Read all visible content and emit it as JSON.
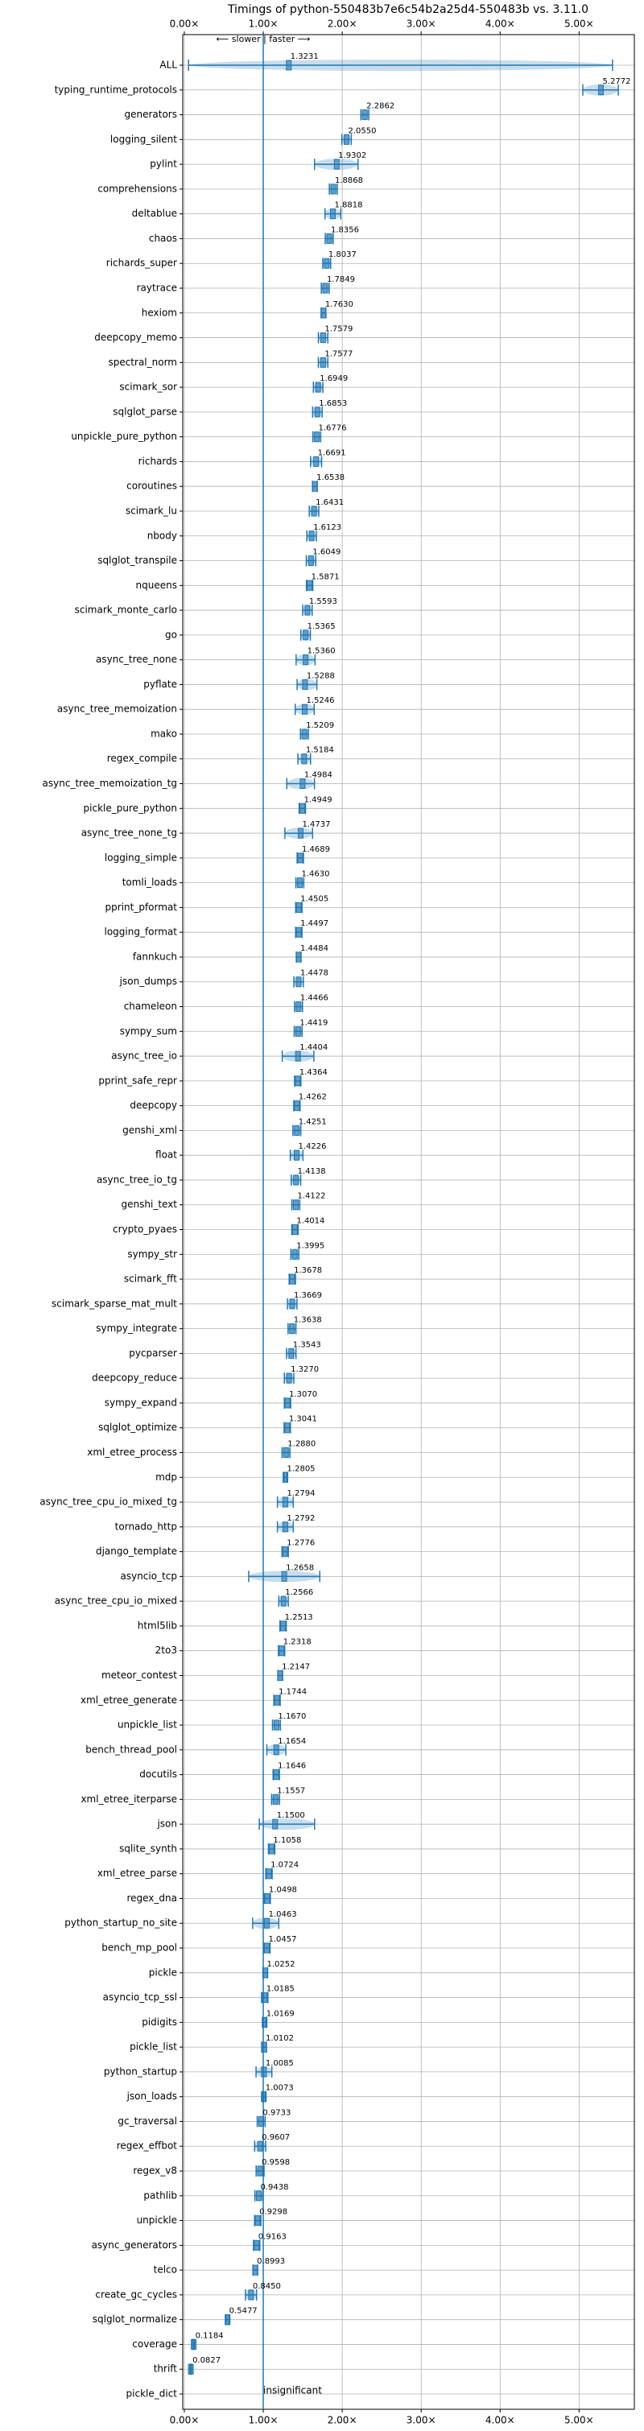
{
  "chart_data": {
    "type": "errorbar",
    "title": "Timings of python-550483b7e6c54b2a25d4-550483b vs. 3.11.0",
    "direction_label": "⟵ slower | faster ⟶",
    "annotation": "insignificant",
    "reference_x": 1,
    "color": "#1f77b4",
    "grid": true,
    "xlim": [
      -0.02,
      5.7
    ],
    "xticks": [
      {
        "value": 0,
        "label": "0.00×"
      },
      {
        "value": 1,
        "label": "1.00×"
      },
      {
        "value": 2,
        "label": "2.00×"
      },
      {
        "value": 3,
        "label": "3.00×"
      },
      {
        "value": 4,
        "label": "4.00×"
      },
      {
        "value": 5,
        "label": "5.00×"
      }
    ],
    "categories": [
      "ALL",
      "typing_runtime_protocols",
      "generators",
      "logging_silent",
      "pylint",
      "comprehensions",
      "deltablue",
      "chaos",
      "richards_super",
      "raytrace",
      "hexiom",
      "deepcopy_memo",
      "spectral_norm",
      "scimark_sor",
      "sqlglot_parse",
      "unpickle_pure_python",
      "richards",
      "coroutines",
      "scimark_lu",
      "nbody",
      "sqlglot_transpile",
      "nqueens",
      "scimark_monte_carlo",
      "go",
      "async_tree_none",
      "pyflate",
      "async_tree_memoization",
      "mako",
      "regex_compile",
      "async_tree_memoization_tg",
      "pickle_pure_python",
      "async_tree_none_tg",
      "logging_simple",
      "tomli_loads",
      "pprint_pformat",
      "logging_format",
      "fannkuch",
      "json_dumps",
      "chameleon",
      "sympy_sum",
      "async_tree_io",
      "pprint_safe_repr",
      "deepcopy",
      "genshi_xml",
      "float",
      "async_tree_io_tg",
      "genshi_text",
      "crypto_pyaes",
      "sympy_str",
      "scimark_fft",
      "scimark_sparse_mat_mult",
      "sympy_integrate",
      "pycparser",
      "deepcopy_reduce",
      "sympy_expand",
      "sqlglot_optimize",
      "xml_etree_process",
      "mdp",
      "async_tree_cpu_io_mixed_tg",
      "tornado_http",
      "django_template",
      "asyncio_tcp",
      "async_tree_cpu_io_mixed",
      "html5lib",
      "2to3",
      "meteor_contest",
      "xml_etree_generate",
      "unpickle_list",
      "bench_thread_pool",
      "docutils",
      "xml_etree_iterparse",
      "json",
      "sqlite_synth",
      "xml_etree_parse",
      "regex_dna",
      "python_startup_no_site",
      "bench_mp_pool",
      "pickle",
      "asyncio_tcp_ssl",
      "pidigits",
      "pickle_list",
      "python_startup",
      "json_loads",
      "gc_traversal",
      "regex_effbot",
      "regex_v8",
      "pathlib",
      "unpickle",
      "async_generators",
      "telco",
      "create_gc_cycles",
      "sqlglot_normalize",
      "coverage",
      "thrift",
      "pickle_dict"
    ],
    "values": [
      1.3231,
      5.2772,
      2.2862,
      2.055,
      1.9302,
      1.8868,
      1.8818,
      1.8356,
      1.8037,
      1.7849,
      1.763,
      1.7579,
      1.7577,
      1.6949,
      1.6853,
      1.6776,
      1.6691,
      1.6538,
      1.6431,
      1.6123,
      1.6049,
      1.5871,
      1.5593,
      1.5365,
      1.536,
      1.5288,
      1.5246,
      1.5209,
      1.5184,
      1.4984,
      1.4949,
      1.4737,
      1.4689,
      1.463,
      1.4505,
      1.4497,
      1.4484,
      1.4478,
      1.4466,
      1.4419,
      1.4404,
      1.4364,
      1.4262,
      1.4251,
      1.4226,
      1.4138,
      1.4122,
      1.4014,
      1.3995,
      1.3678,
      1.3669,
      1.3638,
      1.3543,
      1.327,
      1.307,
      1.3041,
      1.288,
      1.2805,
      1.2794,
      1.2792,
      1.2776,
      1.2658,
      1.2566,
      1.2513,
      1.2318,
      1.2147,
      1.1744,
      1.167,
      1.1654,
      1.1646,
      1.1557,
      1.15,
      1.1058,
      1.0724,
      1.0498,
      1.0463,
      1.0457,
      1.0252,
      1.0185,
      1.0169,
      1.0102,
      1.0085,
      1.0073,
      0.9733,
      0.9607,
      0.9598,
      0.9438,
      0.9298,
      0.9163,
      0.8993,
      0.845,
      0.5477,
      0.1184,
      0.0827,
      null
    ],
    "value_labels": [
      "1.3231",
      "5.2772",
      "2.2862",
      "2.0550",
      "1.9302",
      "1.8868",
      "1.8818",
      "1.8356",
      "1.8037",
      "1.7849",
      "1.7630",
      "1.7579",
      "1.7577",
      "1.6949",
      "1.6853",
      "1.6776",
      "1.6691",
      "1.6538",
      "1.6431",
      "1.6123",
      "1.6049",
      "1.5871",
      "1.5593",
      "1.5365",
      "1.5360",
      "1.5288",
      "1.5246",
      "1.5209",
      "1.5184",
      "1.4984",
      "1.4949",
      "1.4737",
      "1.4689",
      "1.4630",
      "1.4505",
      "1.4497",
      "1.4484",
      "1.4478",
      "1.4466",
      "1.4419",
      "1.4404",
      "1.4364",
      "1.4262",
      "1.4251",
      "1.4226",
      "1.4138",
      "1.4122",
      "1.4014",
      "1.3995",
      "1.3678",
      "1.3669",
      "1.3638",
      "1.3543",
      "1.3270",
      "1.3070",
      "1.3041",
      "1.2880",
      "1.2805",
      "1.2794",
      "1.2792",
      "1.2776",
      "1.2658",
      "1.2566",
      "1.2513",
      "1.2318",
      "1.2147",
      "1.1744",
      "1.1670",
      "1.1654",
      "1.1646",
      "1.1557",
      "1.1500",
      "1.1058",
      "1.0724",
      "1.0498",
      "1.0463",
      "1.0457",
      "1.0252",
      "1.0185",
      "1.0169",
      "1.0102",
      "1.0085",
      "1.0073",
      "0.9733",
      "0.9607",
      "0.9598",
      "0.9438",
      "0.9298",
      "0.9163",
      "0.8993",
      "0.8450",
      "0.5477",
      "0.1184",
      "0.0827",
      null
    ],
    "errors": [
      [
        1.27,
        4.1
      ],
      [
        0.23,
        0.22
      ],
      [
        0.05,
        0.05
      ],
      [
        0.06,
        0.06
      ],
      [
        0.28,
        0.27
      ],
      [
        0.05,
        0.05
      ],
      [
        0.1,
        0.1
      ],
      [
        0.05,
        0.05
      ],
      [
        0.05,
        0.05
      ],
      [
        0.05,
        0.05
      ],
      [
        0.03,
        0.03
      ],
      [
        0.06,
        0.06
      ],
      [
        0.06,
        0.06
      ],
      [
        0.06,
        0.06
      ],
      [
        0.06,
        0.06
      ],
      [
        0.05,
        0.05
      ],
      [
        0.07,
        0.07
      ],
      [
        0.03,
        0.03
      ],
      [
        0.06,
        0.06
      ],
      [
        0.06,
        0.06
      ],
      [
        0.06,
        0.06
      ],
      [
        0.04,
        0.04
      ],
      [
        0.06,
        0.06
      ],
      [
        0.06,
        0.06
      ],
      [
        0.12,
        0.12
      ],
      [
        0.1,
        0.15
      ],
      [
        0.12,
        0.12
      ],
      [
        0.05,
        0.05
      ],
      [
        0.08,
        0.08
      ],
      [
        0.2,
        0.15
      ],
      [
        0.04,
        0.04
      ],
      [
        0.2,
        0.15
      ],
      [
        0.04,
        0.04
      ],
      [
        0.05,
        0.05
      ],
      [
        0.04,
        0.04
      ],
      [
        0.04,
        0.04
      ],
      [
        0.03,
        0.03
      ],
      [
        0.06,
        0.06
      ],
      [
        0.05,
        0.05
      ],
      [
        0.05,
        0.05
      ],
      [
        0.2,
        0.2
      ],
      [
        0.04,
        0.04
      ],
      [
        0.04,
        0.04
      ],
      [
        0.05,
        0.05
      ],
      [
        0.08,
        0.08
      ],
      [
        0.06,
        0.06
      ],
      [
        0.05,
        0.05
      ],
      [
        0.04,
        0.04
      ],
      [
        0.05,
        0.05
      ],
      [
        0.04,
        0.04
      ],
      [
        0.06,
        0.06
      ],
      [
        0.05,
        0.05
      ],
      [
        0.06,
        0.06
      ],
      [
        0.06,
        0.06
      ],
      [
        0.04,
        0.04
      ],
      [
        0.04,
        0.04
      ],
      [
        0.05,
        0.05
      ],
      [
        0.02,
        0.02
      ],
      [
        0.1,
        0.1
      ],
      [
        0.1,
        0.1
      ],
      [
        0.04,
        0.04
      ],
      [
        0.45,
        0.45
      ],
      [
        0.06,
        0.06
      ],
      [
        0.04,
        0.04
      ],
      [
        0.04,
        0.04
      ],
      [
        0.03,
        0.03
      ],
      [
        0.04,
        0.04
      ],
      [
        0.05,
        0.05
      ],
      [
        0.12,
        0.12
      ],
      [
        0.04,
        0.04
      ],
      [
        0.05,
        0.05
      ],
      [
        0.2,
        0.5
      ],
      [
        0.04,
        0.04
      ],
      [
        0.04,
        0.04
      ],
      [
        0.04,
        0.04
      ],
      [
        0.18,
        0.15
      ],
      [
        0.04,
        0.04
      ],
      [
        0.03,
        0.03
      ],
      [
        0.04,
        0.04
      ],
      [
        0.02,
        0.02
      ],
      [
        0.03,
        0.03
      ],
      [
        0.1,
        0.1
      ],
      [
        0.02,
        0.02
      ],
      [
        0.05,
        0.05
      ],
      [
        0.07,
        0.07
      ],
      [
        0.05,
        0.05
      ],
      [
        0.05,
        0.05
      ],
      [
        0.04,
        0.04
      ],
      [
        0.04,
        0.04
      ],
      [
        0.03,
        0.03
      ],
      [
        0.07,
        0.07
      ],
      [
        0.02,
        0.02
      ],
      [
        0.01,
        0.01
      ],
      [
        0.01,
        0.01
      ],
      null
    ]
  }
}
